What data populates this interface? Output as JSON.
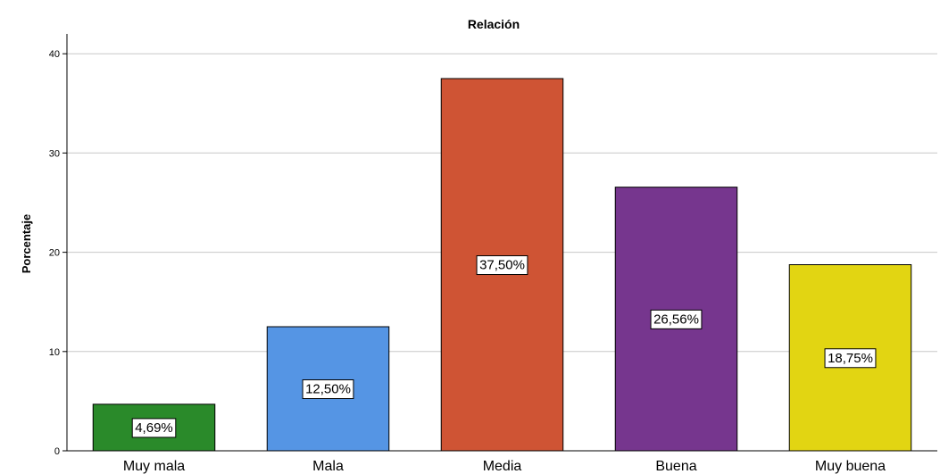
{
  "chart_data": {
    "type": "bar",
    "title": "Relación",
    "xlabel": "",
    "ylabel": "Porcentaje",
    "ylim": [
      0,
      42
    ],
    "yticks": [
      0,
      10,
      20,
      30,
      40
    ],
    "grid": true,
    "categories": [
      "Muy mala",
      "Mala",
      "Media",
      "Buena",
      "Muy buena"
    ],
    "values": [
      4.69,
      12.5,
      37.5,
      26.56,
      18.75
    ],
    "data_labels": [
      "4,69%",
      "12,50%",
      "37,50%",
      "26,56%",
      "18,75%"
    ],
    "colors": [
      "#2a8a2a",
      "#5595e4",
      "#cf5434",
      "#76368e",
      "#e2d512"
    ]
  }
}
